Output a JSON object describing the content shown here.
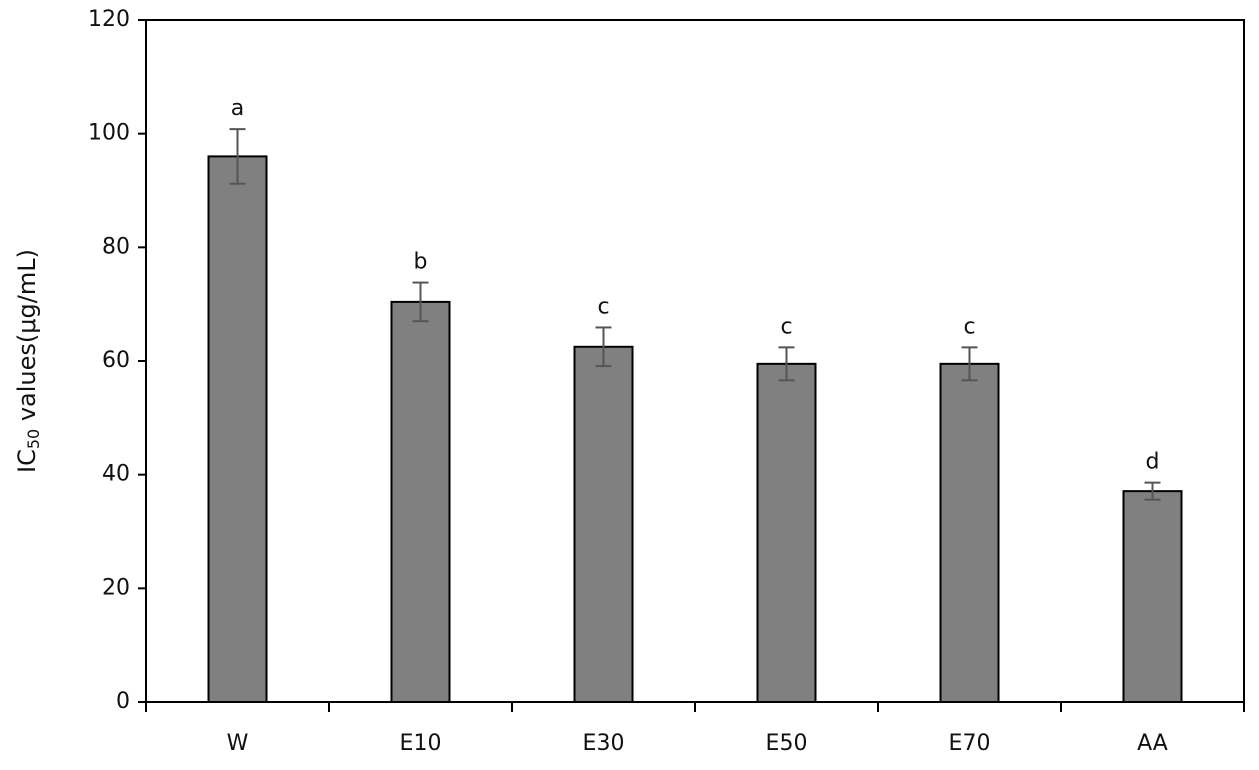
{
  "chart_data": {
    "type": "bar",
    "ylabel": {
      "main": "IC",
      "sub": "50",
      "rest": " values(μg/mL)"
    },
    "categories": [
      "W",
      "E10",
      "E30",
      "E50",
      "E70",
      "AA"
    ],
    "values": [
      96,
      70.4,
      62.5,
      59.5,
      59.5,
      37.1
    ],
    "errors": [
      4.8,
      3.4,
      3.4,
      2.9,
      2.9,
      1.5
    ],
    "annotations": [
      "a",
      "b",
      "c",
      "c",
      "c",
      "d"
    ],
    "color": "#808080",
    "ylim": [
      0,
      120
    ],
    "yticks": [
      0,
      20,
      40,
      60,
      80,
      100,
      120
    ]
  }
}
